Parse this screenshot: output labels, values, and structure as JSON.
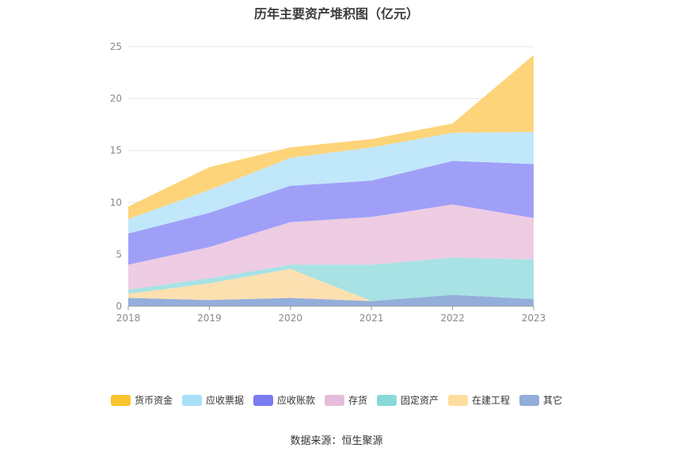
{
  "chart_data": {
    "type": "area",
    "stacked": true,
    "title": "历年主要资产堆积图（亿元）",
    "categories": [
      "2018",
      "2019",
      "2020",
      "2021",
      "2022",
      "2023"
    ],
    "ylim": [
      0,
      25
    ],
    "yticks": [
      0,
      5,
      10,
      15,
      20,
      25
    ],
    "grid": true,
    "legend_position": "bottom",
    "series": [
      {
        "name": "其它",
        "color": "#94aedb",
        "values": [
          0.8,
          0.6,
          0.8,
          0.5,
          1.1,
          0.7
        ]
      },
      {
        "name": "在建工程",
        "color": "#fde0b0",
        "values": [
          0.4,
          1.6,
          2.8,
          0.0,
          0.0,
          0.0
        ]
      },
      {
        "name": "固定资产",
        "color": "#a8e2e4",
        "values": [
          0.4,
          0.5,
          0.4,
          3.5,
          3.6,
          3.8
        ]
      },
      {
        "name": "存货",
        "color": "#eeccE3",
        "values": [
          2.4,
          3.0,
          4.1,
          4.6,
          5.1,
          4.0
        ]
      },
      {
        "name": "应收账款",
        "color": "#9f9ff8",
        "values": [
          3.0,
          3.3,
          3.5,
          3.5,
          4.2,
          5.2
        ]
      },
      {
        "name": "应收票据",
        "color": "#c1e7fb",
        "values": [
          1.4,
          2.2,
          2.7,
          3.2,
          2.7,
          3.1
        ]
      },
      {
        "name": "货币资金",
        "color": "#fdd479",
        "values": [
          1.2,
          2.2,
          1.0,
          0.8,
          0.9,
          7.4
        ]
      }
    ]
  },
  "legend": {
    "items": [
      {
        "label": "货币资金",
        "color": "#fac42f"
      },
      {
        "label": "应收票据",
        "color": "#a9dff8"
      },
      {
        "label": "应收账款",
        "color": "#7b7bf1"
      },
      {
        "label": "存货",
        "color": "#e6bcdc"
      },
      {
        "label": "固定资产",
        "color": "#88d9d9"
      },
      {
        "label": "在建工程",
        "color": "#fedd9f"
      },
      {
        "label": "其它",
        "color": "#92aed9"
      }
    ]
  },
  "source_note": "数据来源：恒生聚源"
}
